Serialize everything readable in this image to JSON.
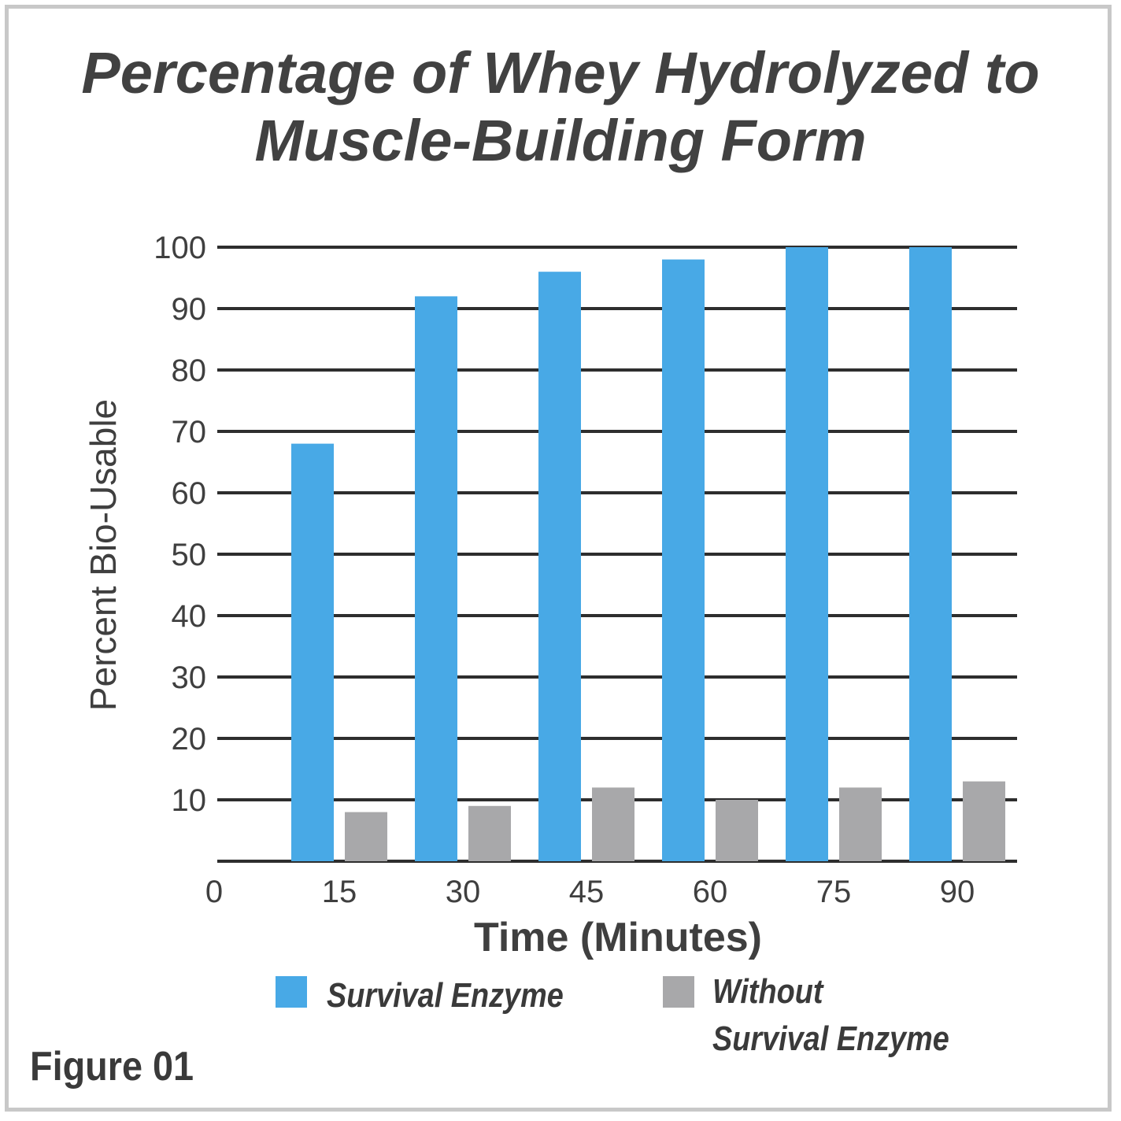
{
  "colors": {
    "survival": "#48a9e6",
    "without": "#a8a8aa",
    "gridline": "#2e2e2e",
    "text": "#3f3f3f"
  },
  "figure_label": "Figure 01",
  "legend": {
    "survival": "Survival Enzyme",
    "without_line1": "Without",
    "without_line2": "Survival Enzyme"
  },
  "chart_data": {
    "type": "bar",
    "title": "Percentage of Whey Hydrolyzed to Muscle-Building Form",
    "title_lines": [
      "Percentage of Whey Hydrolyzed to",
      "Muscle-Building Form"
    ],
    "xlabel": "Time (Minutes)",
    "ylabel": "Percent Bio-Usable",
    "categories": [
      "15",
      "30",
      "45",
      "60",
      "75",
      "90"
    ],
    "x_zero_label": "0",
    "y_ticks": [
      10,
      20,
      30,
      40,
      50,
      60,
      70,
      80,
      90,
      100
    ],
    "ylim": [
      0,
      100
    ],
    "grid": true,
    "legend_position": "bottom",
    "series": [
      {
        "name": "Survival Enzyme",
        "values": [
          68,
          92,
          96,
          98,
          100,
          100
        ]
      },
      {
        "name": "Without Survival Enzyme",
        "values": [
          8,
          9,
          12,
          10,
          12,
          13
        ]
      }
    ]
  }
}
